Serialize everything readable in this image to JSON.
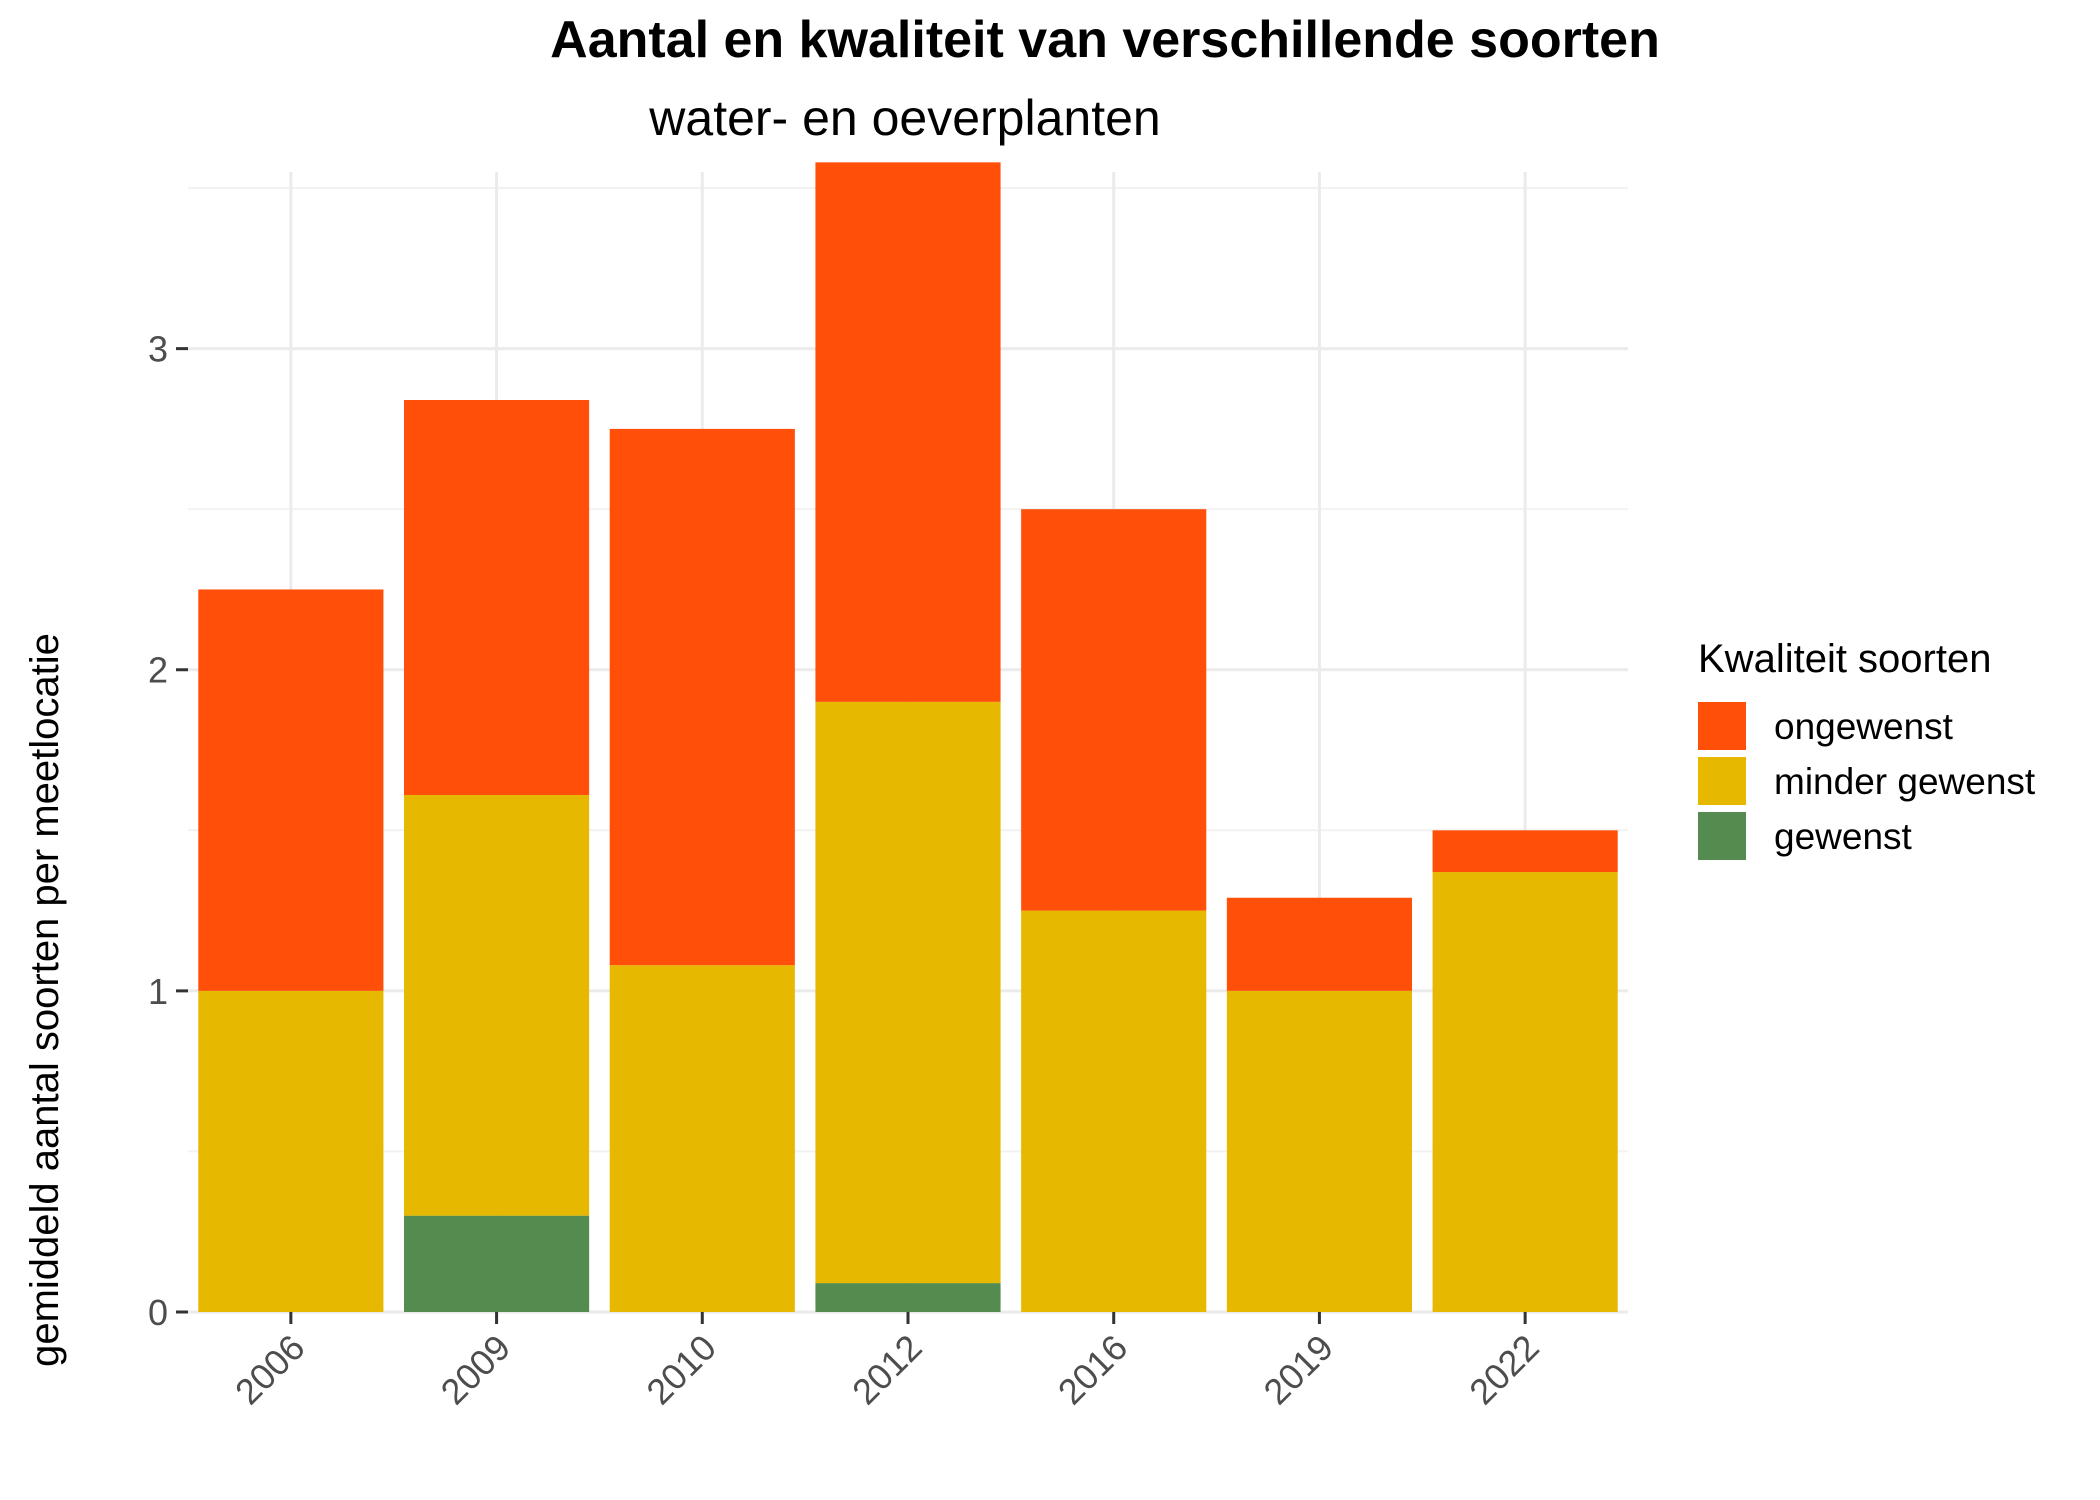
{
  "chart_data": {
    "type": "bar",
    "stacked": true,
    "title": "Aantal en kwaliteit van verschillende soorten",
    "subtitle": "water- en oeverplanten",
    "xlabel": "",
    "ylabel": "gemiddeld aantal soorten per meetlocatie",
    "categories": [
      "2006",
      "2009",
      "2010",
      "2012",
      "2016",
      "2019",
      "2022"
    ],
    "series": [
      {
        "name": "gewenst",
        "color": "#548b4f",
        "values": [
          0,
          0.3,
          0,
          0.09,
          0,
          0,
          0
        ]
      },
      {
        "name": "minder gewenst",
        "color": "#e6b800",
        "values": [
          1.0,
          1.31,
          1.08,
          1.81,
          1.25,
          1.0,
          1.37
        ]
      },
      {
        "name": "ongewenst",
        "color": "#ff4f08",
        "values": [
          1.25,
          1.23,
          1.67,
          1.68,
          1.25,
          0.29,
          0.13
        ]
      }
    ],
    "ylim": [
      0,
      3.55
    ],
    "yticks": [
      0,
      1,
      2,
      3
    ],
    "grid": true,
    "legend": {
      "title": "Kwaliteit soorten",
      "placement": "right",
      "order": [
        "ongewenst",
        "minder gewenst",
        "gewenst"
      ]
    }
  }
}
